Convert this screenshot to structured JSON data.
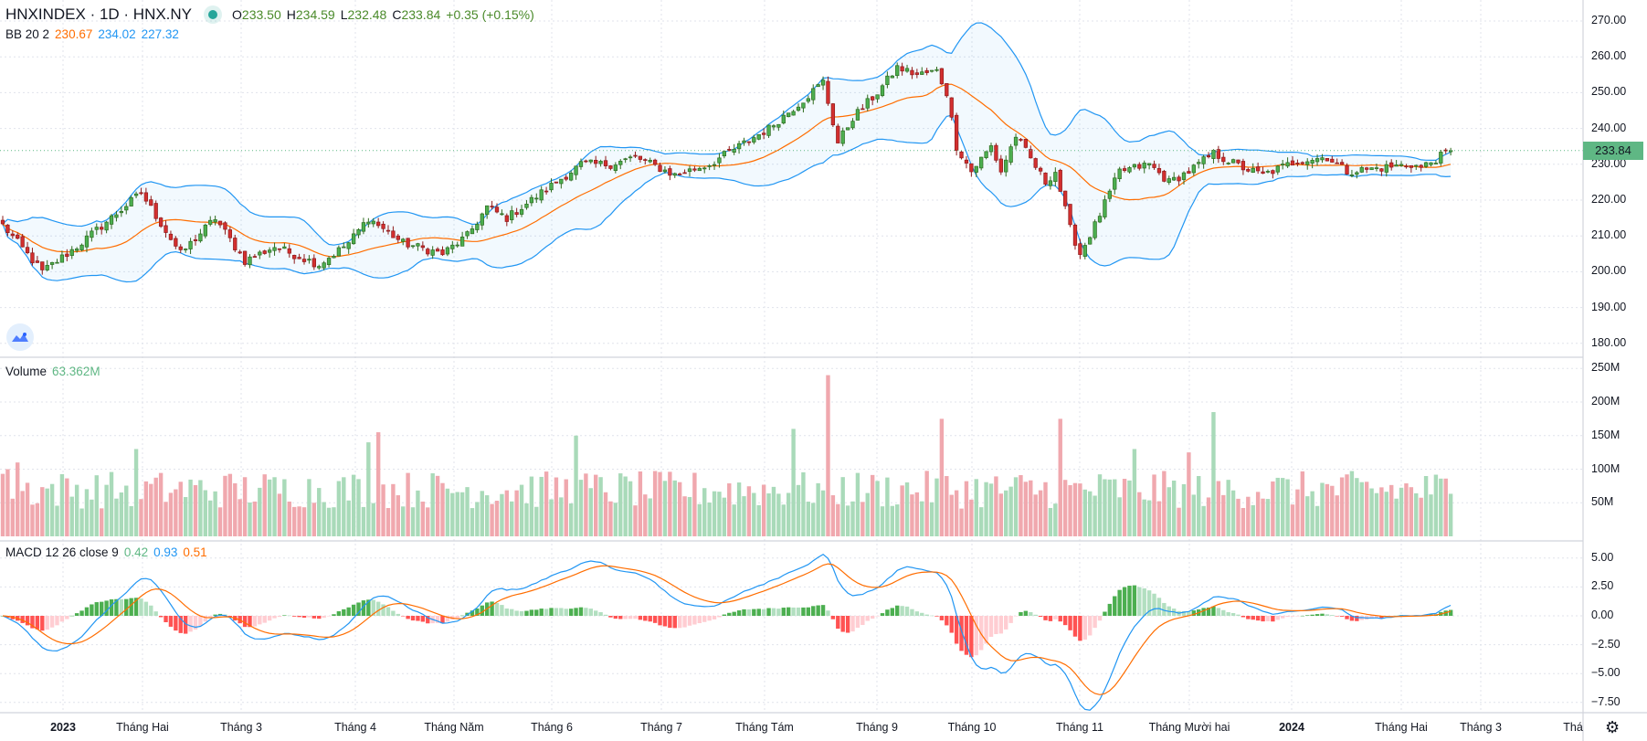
{
  "header": {
    "symbol": "HNXINDEX · 1D · HNX.NY",
    "o_label": "O",
    "o": "233.50",
    "h_label": "H",
    "h": "234.59",
    "l_label": "L",
    "l": "232.48",
    "c_label": "C",
    "c": "233.84",
    "change": "+0.35 (+0.15%)"
  },
  "bb_legend": {
    "label": "BB 20 2",
    "basis": "230.67",
    "upper": "234.02",
    "lower": "227.32"
  },
  "volume_legend": {
    "label": "Volume",
    "value": "63.362M"
  },
  "macd_legend": {
    "label": "MACD 12 26 close 9",
    "hist": "0.42",
    "macd": "0.93",
    "signal": "0.51"
  },
  "last_price_label": "233.84",
  "time_axis": [
    "2023",
    "Tháng Hai",
    "Tháng 3",
    "Tháng 4",
    "Tháng Năm",
    "Tháng 6",
    "Tháng 7",
    "Tháng Tám",
    "Tháng 9",
    "Tháng 10",
    "Tháng 11",
    "Tháng Mười hai",
    "2024",
    "Tháng Hai",
    "Tháng 3",
    "Thá"
  ],
  "colors": {
    "up": "#4caf50",
    "up_border": "#2e6b1f",
    "down": "#d32f2f",
    "down_border": "#8e1b1b",
    "vol_up": "#a9dab9",
    "vol_down": "#f0a8ae",
    "bb_basis": "#ff6d00",
    "bb_band": "#2196f3",
    "bb_fill": "rgba(33,150,243,0.06)",
    "macd": "#2196f3",
    "signal": "#ff6d00",
    "hist_up_strong": "#4caf50",
    "hist_up_weak": "#b2dfc0",
    "hist_down_strong": "#ff5252",
    "hist_down_weak": "#ffcdd2",
    "last_price": "#5fb784"
  },
  "chart_data": {
    "type": "candlestick",
    "title": "HNXINDEX · 1D · HNX.NY",
    "price_axis": {
      "ticks": [
        180,
        190,
        200,
        210,
        220,
        230,
        240,
        250,
        260,
        270
      ],
      "range": [
        176,
        271
      ]
    },
    "volume_axis": {
      "ticks": [
        50,
        100,
        150,
        200,
        250
      ],
      "unit": "M",
      "range": [
        0,
        265
      ]
    },
    "macd_axis": {
      "ticks": [
        5.0,
        2.5,
        0.0,
        -2.5,
        -5.0,
        -7.5
      ],
      "range": [
        -8.5,
        6.0
      ]
    },
    "bars": 294,
    "close_anchors": [
      [
        0,
        213
      ],
      [
        8,
        200
      ],
      [
        15,
        207
      ],
      [
        28,
        222
      ],
      [
        36,
        205
      ],
      [
        43,
        215
      ],
      [
        49,
        203
      ],
      [
        55,
        207
      ],
      [
        64,
        202
      ],
      [
        70,
        208
      ],
      [
        74,
        215
      ],
      [
        81,
        208
      ],
      [
        89,
        205
      ],
      [
        94,
        210
      ],
      [
        98,
        218
      ],
      [
        102,
        215
      ],
      [
        109,
        222
      ],
      [
        117,
        230
      ],
      [
        123,
        230
      ],
      [
        128,
        232
      ],
      [
        136,
        227
      ],
      [
        143,
        230
      ],
      [
        149,
        235
      ],
      [
        155,
        240
      ],
      [
        162,
        248
      ],
      [
        166,
        253
      ],
      [
        169,
        236
      ],
      [
        172,
        243
      ],
      [
        177,
        250
      ],
      [
        181,
        257
      ],
      [
        185,
        255
      ],
      [
        189,
        256
      ],
      [
        191,
        250
      ],
      [
        193,
        235
      ],
      [
        196,
        228
      ],
      [
        200,
        235
      ],
      [
        202,
        228
      ],
      [
        205,
        238
      ],
      [
        211,
        225
      ],
      [
        213,
        228
      ],
      [
        216,
        212
      ],
      [
        218,
        205
      ],
      [
        221,
        213
      ],
      [
        226,
        228
      ],
      [
        232,
        230
      ],
      [
        236,
        225
      ],
      [
        240,
        228
      ],
      [
        245,
        233
      ],
      [
        251,
        229
      ],
      [
        255,
        227
      ],
      [
        262,
        231
      ],
      [
        268,
        232
      ],
      [
        272,
        228
      ],
      [
        279,
        229
      ],
      [
        285,
        230
      ],
      [
        287,
        229
      ],
      [
        293,
        233.84
      ]
    ],
    "last_bar": {
      "open": 233.5,
      "high": 234.59,
      "low": 232.48,
      "close": 233.84,
      "volume_m": 63.362
    },
    "volume_base_m": 75,
    "volume_spikes_m": [
      [
        1,
        100
      ],
      [
        3,
        110
      ],
      [
        27,
        130
      ],
      [
        76,
        155
      ],
      [
        74,
        140
      ],
      [
        116,
        150
      ],
      [
        160,
        160
      ],
      [
        167,
        240
      ],
      [
        190,
        175
      ],
      [
        214,
        175
      ],
      [
        245,
        185
      ],
      [
        229,
        130
      ],
      [
        240,
        125
      ]
    ],
    "indicators": {
      "bollinger": {
        "length": 20,
        "mult": 2
      },
      "macd": {
        "fast": 12,
        "slow": 26,
        "signal": 9
      }
    }
  }
}
